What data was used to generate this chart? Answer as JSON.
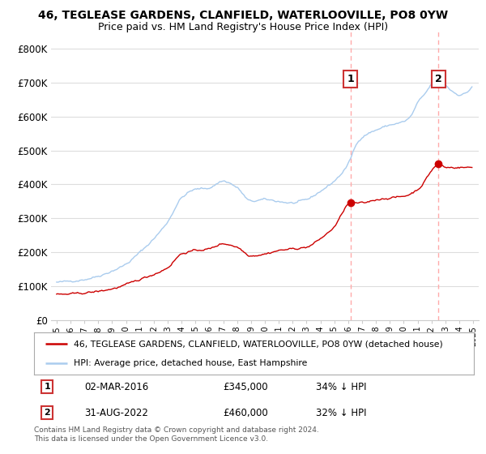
{
  "title_line1": "46, TEGLEASE GARDENS, CLANFIELD, WATERLOOVILLE, PO8 0YW",
  "title_line2": "Price paid vs. HM Land Registry's House Price Index (HPI)",
  "ylim": [
    0,
    850000
  ],
  "yticks": [
    0,
    100000,
    200000,
    300000,
    400000,
    500000,
    600000,
    700000,
    800000
  ],
  "ytick_labels": [
    "£0",
    "£100K",
    "£200K",
    "£300K",
    "£400K",
    "£500K",
    "£600K",
    "£700K",
    "£800K"
  ],
  "hpi_color": "#aaccee",
  "price_color": "#cc0000",
  "marker1_price": 345000,
  "marker1_date_str": "02-MAR-2016",
  "marker1_pct": "34% ↓ HPI",
  "marker2_price": 460000,
  "marker2_date_str": "31-AUG-2022",
  "marker2_pct": "32% ↓ HPI",
  "legend_line1": "46, TEGLEASE GARDENS, CLANFIELD, WATERLOOVILLE, PO8 0YW (detached house)",
  "legend_line2": "HPI: Average price, detached house, East Hampshire",
  "footer": "Contains HM Land Registry data © Crown copyright and database right 2024.\nThis data is licensed under the Open Government Licence v3.0.",
  "bg_color": "#ffffff",
  "grid_color": "#dddddd",
  "dashed_line_color": "#ffaaaa",
  "box_label_color": "#cc3333"
}
